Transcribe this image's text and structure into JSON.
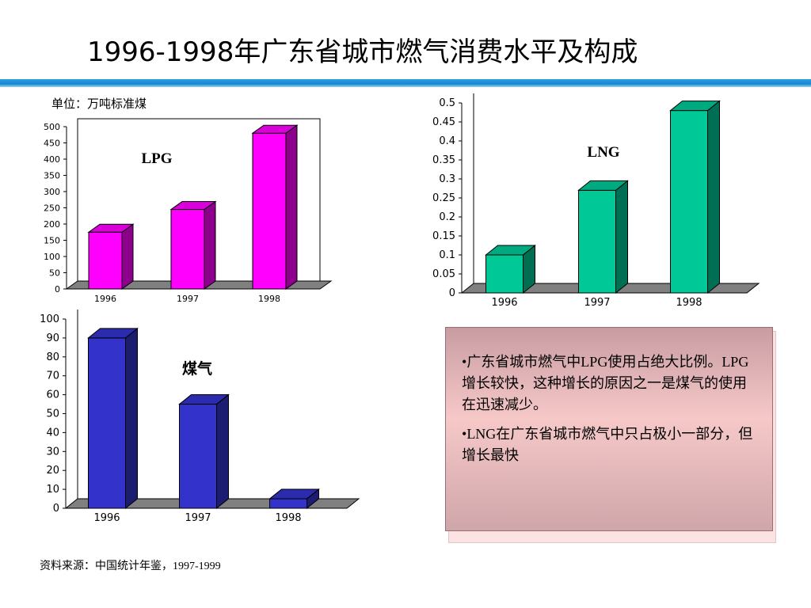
{
  "title": "1996-1998年广东省城市燃气消费水平及构成",
  "unit_label": "单位：万吨标准煤",
  "source": "资料来源：中国统计年鉴，1997-1999",
  "notes": [
    "广东省城市燃气中LPG使用占绝大比例。LPG 增长较快，这种增长的原因之一是煤气的使用在迅速减少。",
    "LNG在广东省城市燃气中只占极小一部分，但增长最快"
  ],
  "chart_data": [
    {
      "type": "bar",
      "title": "LPG",
      "categories": [
        "1996",
        "1997",
        "1998"
      ],
      "values": [
        175,
        245,
        480
      ],
      "ylim": [
        0,
        500
      ],
      "yticks": [
        "0",
        "50",
        "100",
        "150",
        "200",
        "250",
        "300",
        "350",
        "400",
        "450",
        "500"
      ],
      "color": "#ff00ff",
      "grid": false
    },
    {
      "type": "bar",
      "title": "LNG",
      "categories": [
        "1996",
        "1997",
        "1998"
      ],
      "values": [
        0.1,
        0.27,
        0.48
      ],
      "ylim": [
        0,
        0.5
      ],
      "yticks": [
        "0",
        "0.05",
        "0.1",
        "0.15",
        "0.2",
        "0.25",
        "0.3",
        "0.35",
        "0.4",
        "0.45",
        "0.5"
      ],
      "color": "#00c896",
      "grid": false
    },
    {
      "type": "bar",
      "title": "煤气",
      "categories": [
        "1996",
        "1997",
        "1998"
      ],
      "values": [
        90,
        55,
        5
      ],
      "ylim": [
        0,
        100
      ],
      "yticks": [
        "0",
        "10",
        "20",
        "30",
        "40",
        "50",
        "60",
        "70",
        "80",
        "90",
        "100"
      ],
      "color": "#3333cc",
      "grid": false
    }
  ]
}
